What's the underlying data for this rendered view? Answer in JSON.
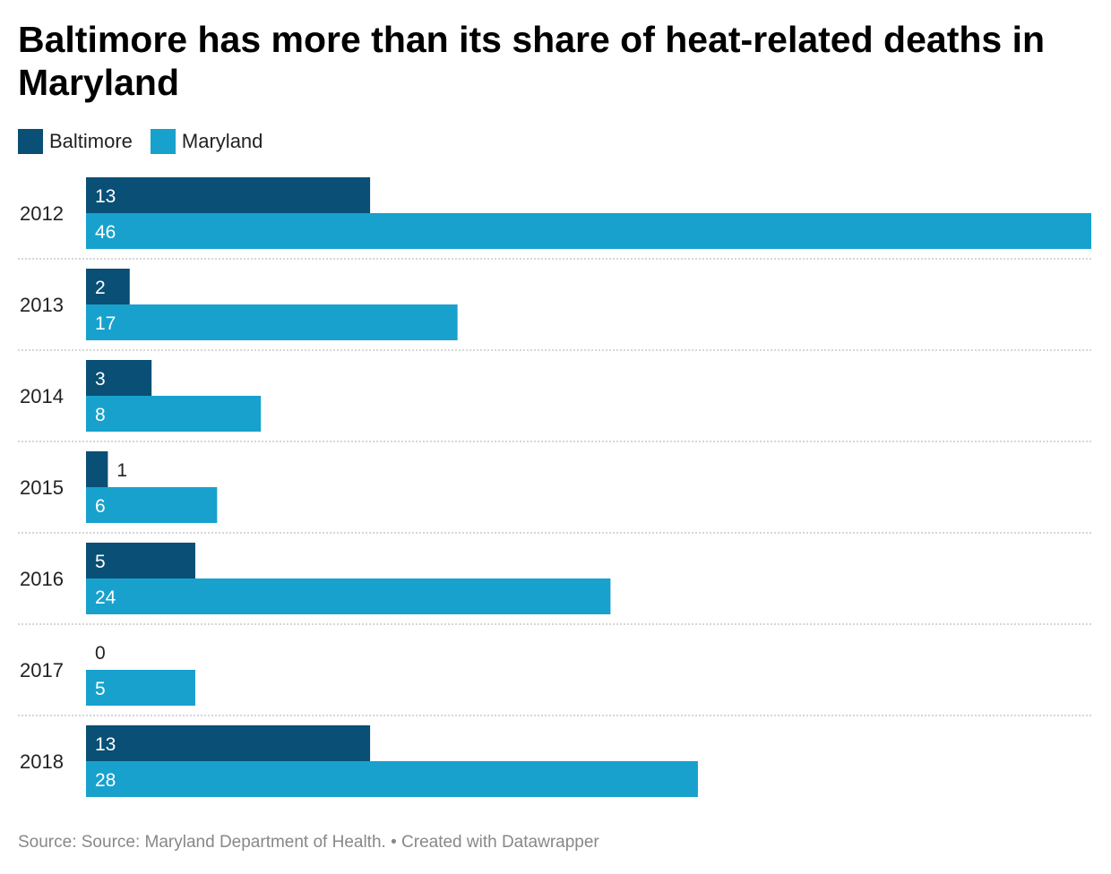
{
  "chart_data": {
    "type": "bar",
    "orientation": "horizontal",
    "title": "Baltimore has more than its share of heat-related deaths in Maryland",
    "categories": [
      "2012",
      "2013",
      "2014",
      "2015",
      "2016",
      "2017",
      "2018"
    ],
    "series": [
      {
        "name": "Baltimore",
        "values": [
          13,
          2,
          3,
          1,
          5,
          0,
          13
        ],
        "color": "#0a4f75"
      },
      {
        "name": "Maryland",
        "values": [
          46,
          17,
          8,
          6,
          24,
          5,
          28
        ],
        "color": "#18a1cd"
      }
    ],
    "xlim": [
      0,
      46
    ],
    "grid": false,
    "legend_position": "top-left",
    "source": "Source: Source: Maryland Department of Health. • Created with Datawrapper"
  }
}
